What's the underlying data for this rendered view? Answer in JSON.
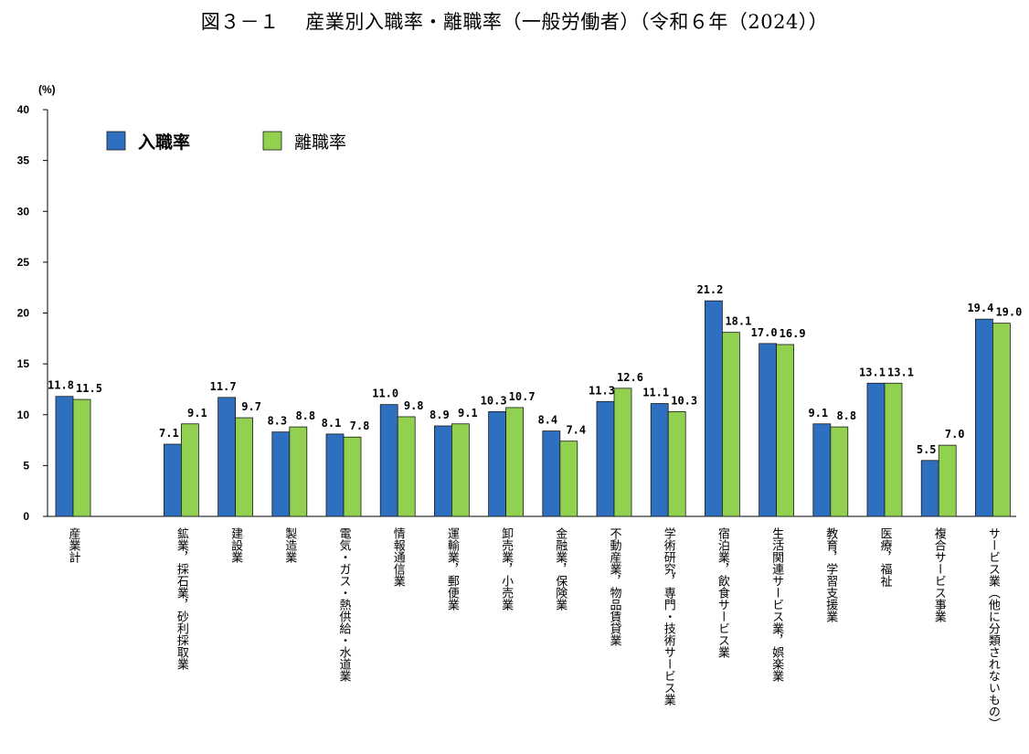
{
  "title": "図３－１　 産業別入職率・離職率（一般労働者）（令和６年（2024））",
  "chart_data": {
    "type": "bar",
    "title": "図３－１　 産業別入職率・離職率（一般労働者）（令和６年（2024））",
    "ylabel": "(%)",
    "xlabel": "",
    "ylim": [
      0,
      40
    ],
    "yticks": [
      0,
      5,
      10,
      15,
      20,
      25,
      30,
      35,
      40
    ],
    "grid": false,
    "legend_position": "top-left",
    "categories": [
      "産業計",
      "鉱業，採石業，砂利採取業",
      "建設業",
      "製造業",
      "電気・ガス・熱供給・水道業",
      "情報通信業",
      "運輸業，郵便業",
      "卸売業，小売業",
      "金融業，保険業",
      "不動産業，物品賃貸業",
      "学術研究，専門・技術サービス業",
      "宿泊業，飲食サービス業",
      "生活関連サービス業，娯楽業",
      "教育，学習支援業",
      "医療，福祉",
      "複合サービス事業",
      "サービス業（他に分類されないもの）"
    ],
    "series": [
      {
        "name": "入職率",
        "color": "#2f6fbf",
        "values": [
          11.8,
          7.1,
          11.7,
          8.3,
          8.1,
          11.0,
          8.9,
          10.3,
          8.4,
          11.3,
          11.1,
          21.2,
          17.0,
          9.1,
          13.1,
          5.5,
          19.4
        ]
      },
      {
        "name": "離職率",
        "color": "#92d050",
        "values": [
          11.5,
          9.1,
          9.7,
          8.8,
          7.8,
          9.8,
          9.1,
          10.7,
          7.4,
          12.6,
          10.3,
          18.1,
          16.9,
          8.8,
          13.1,
          7.0,
          19.0
        ]
      }
    ],
    "data_labels": [
      [
        "11.8",
        "7.1",
        "11.7",
        "8.3",
        "8.1",
        "11.0",
        "8.9",
        "10.3",
        "8.4",
        "11.3",
        "11.1",
        "21.2",
        "17.0",
        "9.1",
        "13.1",
        "5.5",
        "19.4"
      ],
      [
        "11.5",
        "9.1",
        "9.7",
        "8.8",
        "7.8",
        "9.8",
        "9.1",
        "10.7",
        "7.4",
        "12.6",
        "10.3",
        "18.1",
        "16.9",
        "8.8",
        "13.1",
        "7.0",
        "19.0"
      ]
    ]
  }
}
